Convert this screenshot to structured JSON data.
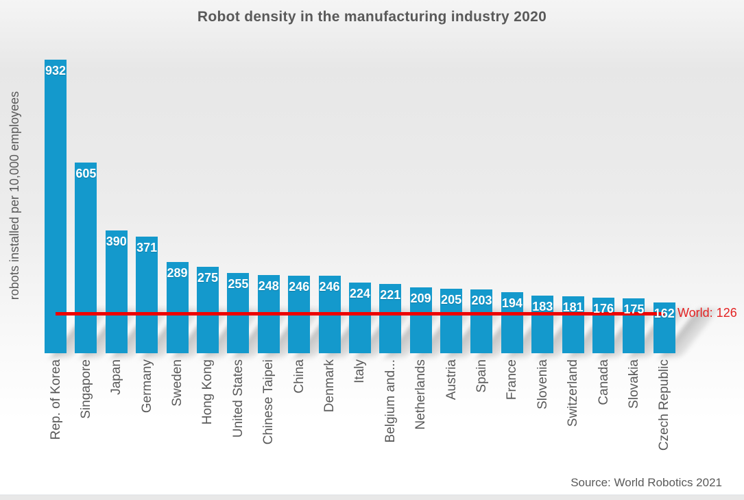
{
  "chart_data": {
    "type": "bar",
    "title": "Robot density in the manufacturing industry 2020",
    "ylabel": "robots installed per 10,000 employees",
    "xlabel": "",
    "categories": [
      "Rep. of Korea",
      "Singapore",
      "Japan",
      "Germany",
      "Sweden",
      "Hong Kong",
      "United States",
      "Chinese Taipei",
      "China",
      "Denmark",
      "Italy",
      "Belgium and...",
      "Netherlands",
      "Austria",
      "Spain",
      "France",
      "Slovenia",
      "Switzerland",
      "Canada",
      "Slovakia",
      "Czech Republic"
    ],
    "values": [
      932,
      605,
      390,
      371,
      289,
      275,
      255,
      248,
      246,
      246,
      224,
      221,
      209,
      205,
      203,
      194,
      183,
      181,
      176,
      175,
      162
    ],
    "value_labels_visible": true,
    "ylim": [
      0,
      932
    ],
    "grid": false,
    "legend_position": "none",
    "reference_line": {
      "value": 126,
      "label": "World: 126",
      "line_color": "#ee0202",
      "label_color": "#e32222"
    },
    "bar_color": "#1499cc",
    "title_color": "#595959",
    "axis_text_color": "#595959",
    "source": "Source: World Robotics 2021"
  }
}
